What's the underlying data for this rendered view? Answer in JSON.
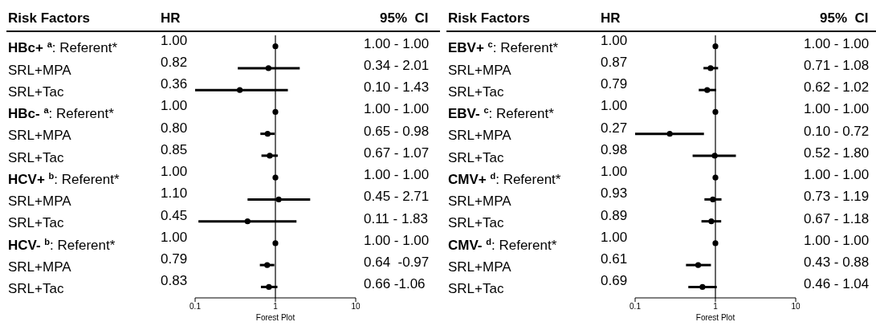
{
  "chart_data": [
    {
      "type": "scatter",
      "orientation": "horizontal",
      "ylabel": "Risk Factors",
      "xlabel": "Forest Plot",
      "color": "#000000",
      "marker": "circle",
      "log": "x",
      "xlim": [
        0.1,
        10
      ],
      "xticks": [
        0.1,
        1,
        10
      ],
      "categories": [
        "HBc+ $^{a}$: Referent*",
        "SRL+MPA",
        "SRL+Tac",
        "HBc- $^{a}$: Referent*",
        "SRL+MPA",
        "SRL+Tac",
        "HCV+ $^{b}$: Referent*",
        "SRL+MPA",
        "SRL+Tac",
        "HCV- $^{b}$: Referent*",
        "SRL+MPA",
        "SRL+Tac"
      ],
      "values": [
        1.0,
        0.82,
        0.36,
        1.0,
        0.8,
        0.85,
        1.0,
        1.1,
        0.45,
        1.0,
        0.79,
        0.83
      ],
      "errors": [
        [
          1.0,
          1.0
        ],
        [
          0.34,
          2.01
        ],
        [
          0.1,
          1.43
        ],
        [
          1.0,
          1.0
        ],
        [
          0.65,
          0.98
        ],
        [
          0.67,
          1.07
        ],
        [
          1.0,
          1.0
        ],
        [
          0.45,
          2.71
        ],
        [
          0.11,
          1.83
        ],
        [
          1.0,
          1.0
        ],
        [
          0.64,
          0.97
        ],
        [
          0.66,
          1.06
        ]
      ],
      "annotations": [
        "HR",
        "95%  CI",
        "1.00",
        "0.82",
        "0.36",
        "1.00",
        "0.80",
        "0.85",
        "1.00",
        "1.10",
        "0.45",
        "1.00",
        "0.79",
        "0.83",
        "1.00 - 1.00",
        "0.34 - 2.01",
        "0.10 - 1.43",
        "1.00 - 1.00",
        "0.65 - 0.98",
        "0.67 - 1.07",
        "1.00 - 1.00",
        "0.45 - 2.71",
        "0.11 - 1.83",
        "1.00 - 1.00",
        "0.64  -0.97",
        "0.66 -1.06"
      ],
      "ref_lines": [
        {
          "axis": "x",
          "value": 1
        }
      ]
    },
    {
      "type": "scatter",
      "orientation": "horizontal",
      "ylabel": "Risk Factors",
      "xlabel": "Forest Plot",
      "color": "#000000",
      "marker": "circle",
      "log": "x",
      "xlim": [
        0.1,
        10
      ],
      "xticks": [
        0.1,
        1,
        10
      ],
      "categories": [
        "EBV+ $^{c}$: Referent*",
        "SRL+MPA",
        "SRL+Tac",
        "EBV- $^{c}$: Referent*",
        "SRL+MPA",
        "SRL+Tac",
        "CMV+ $^{d}$: Referent*",
        "SRL+MPA",
        "SRL+Tac",
        "CMV- $^{d}$: Referent*",
        "SRL+MPA",
        "SRL+Tac"
      ],
      "values": [
        1.0,
        0.87,
        0.79,
        1.0,
        0.27,
        0.98,
        1.0,
        0.93,
        0.89,
        1.0,
        0.61,
        0.69
      ],
      "errors": [
        [
          1.0,
          1.0
        ],
        [
          0.71,
          1.08
        ],
        [
          0.62,
          1.02
        ],
        [
          1.0,
          1.0
        ],
        [
          0.1,
          0.72
        ],
        [
          0.52,
          1.8
        ],
        [
          1.0,
          1.0
        ],
        [
          0.73,
          1.19
        ],
        [
          0.67,
          1.18
        ],
        [
          1.0,
          1.0
        ],
        [
          0.43,
          0.88
        ],
        [
          0.46,
          1.04
        ]
      ],
      "annotations": [
        "HR",
        "95%  CI",
        "1.00",
        "0.87",
        "0.79",
        "1.00",
        "0.27",
        "0.98",
        "1.00",
        "0.93",
        "0.89",
        "1.00",
        "0.61",
        "0.69",
        "1.00 - 1.00",
        "0.71 - 1.08",
        "0.62 - 1.02",
        "1.00 - 1.00",
        "0.10 - 0.72",
        "0.52 - 1.80",
        "1.00 - 1.00",
        "0.73 - 1.19",
        "0.67 - 1.18",
        "1.00 - 1.00",
        "0.43 - 0.88",
        "0.46 - 1.04"
      ],
      "ref_lines": [
        {
          "axis": "x",
          "value": 1
        }
      ]
    }
  ]
}
